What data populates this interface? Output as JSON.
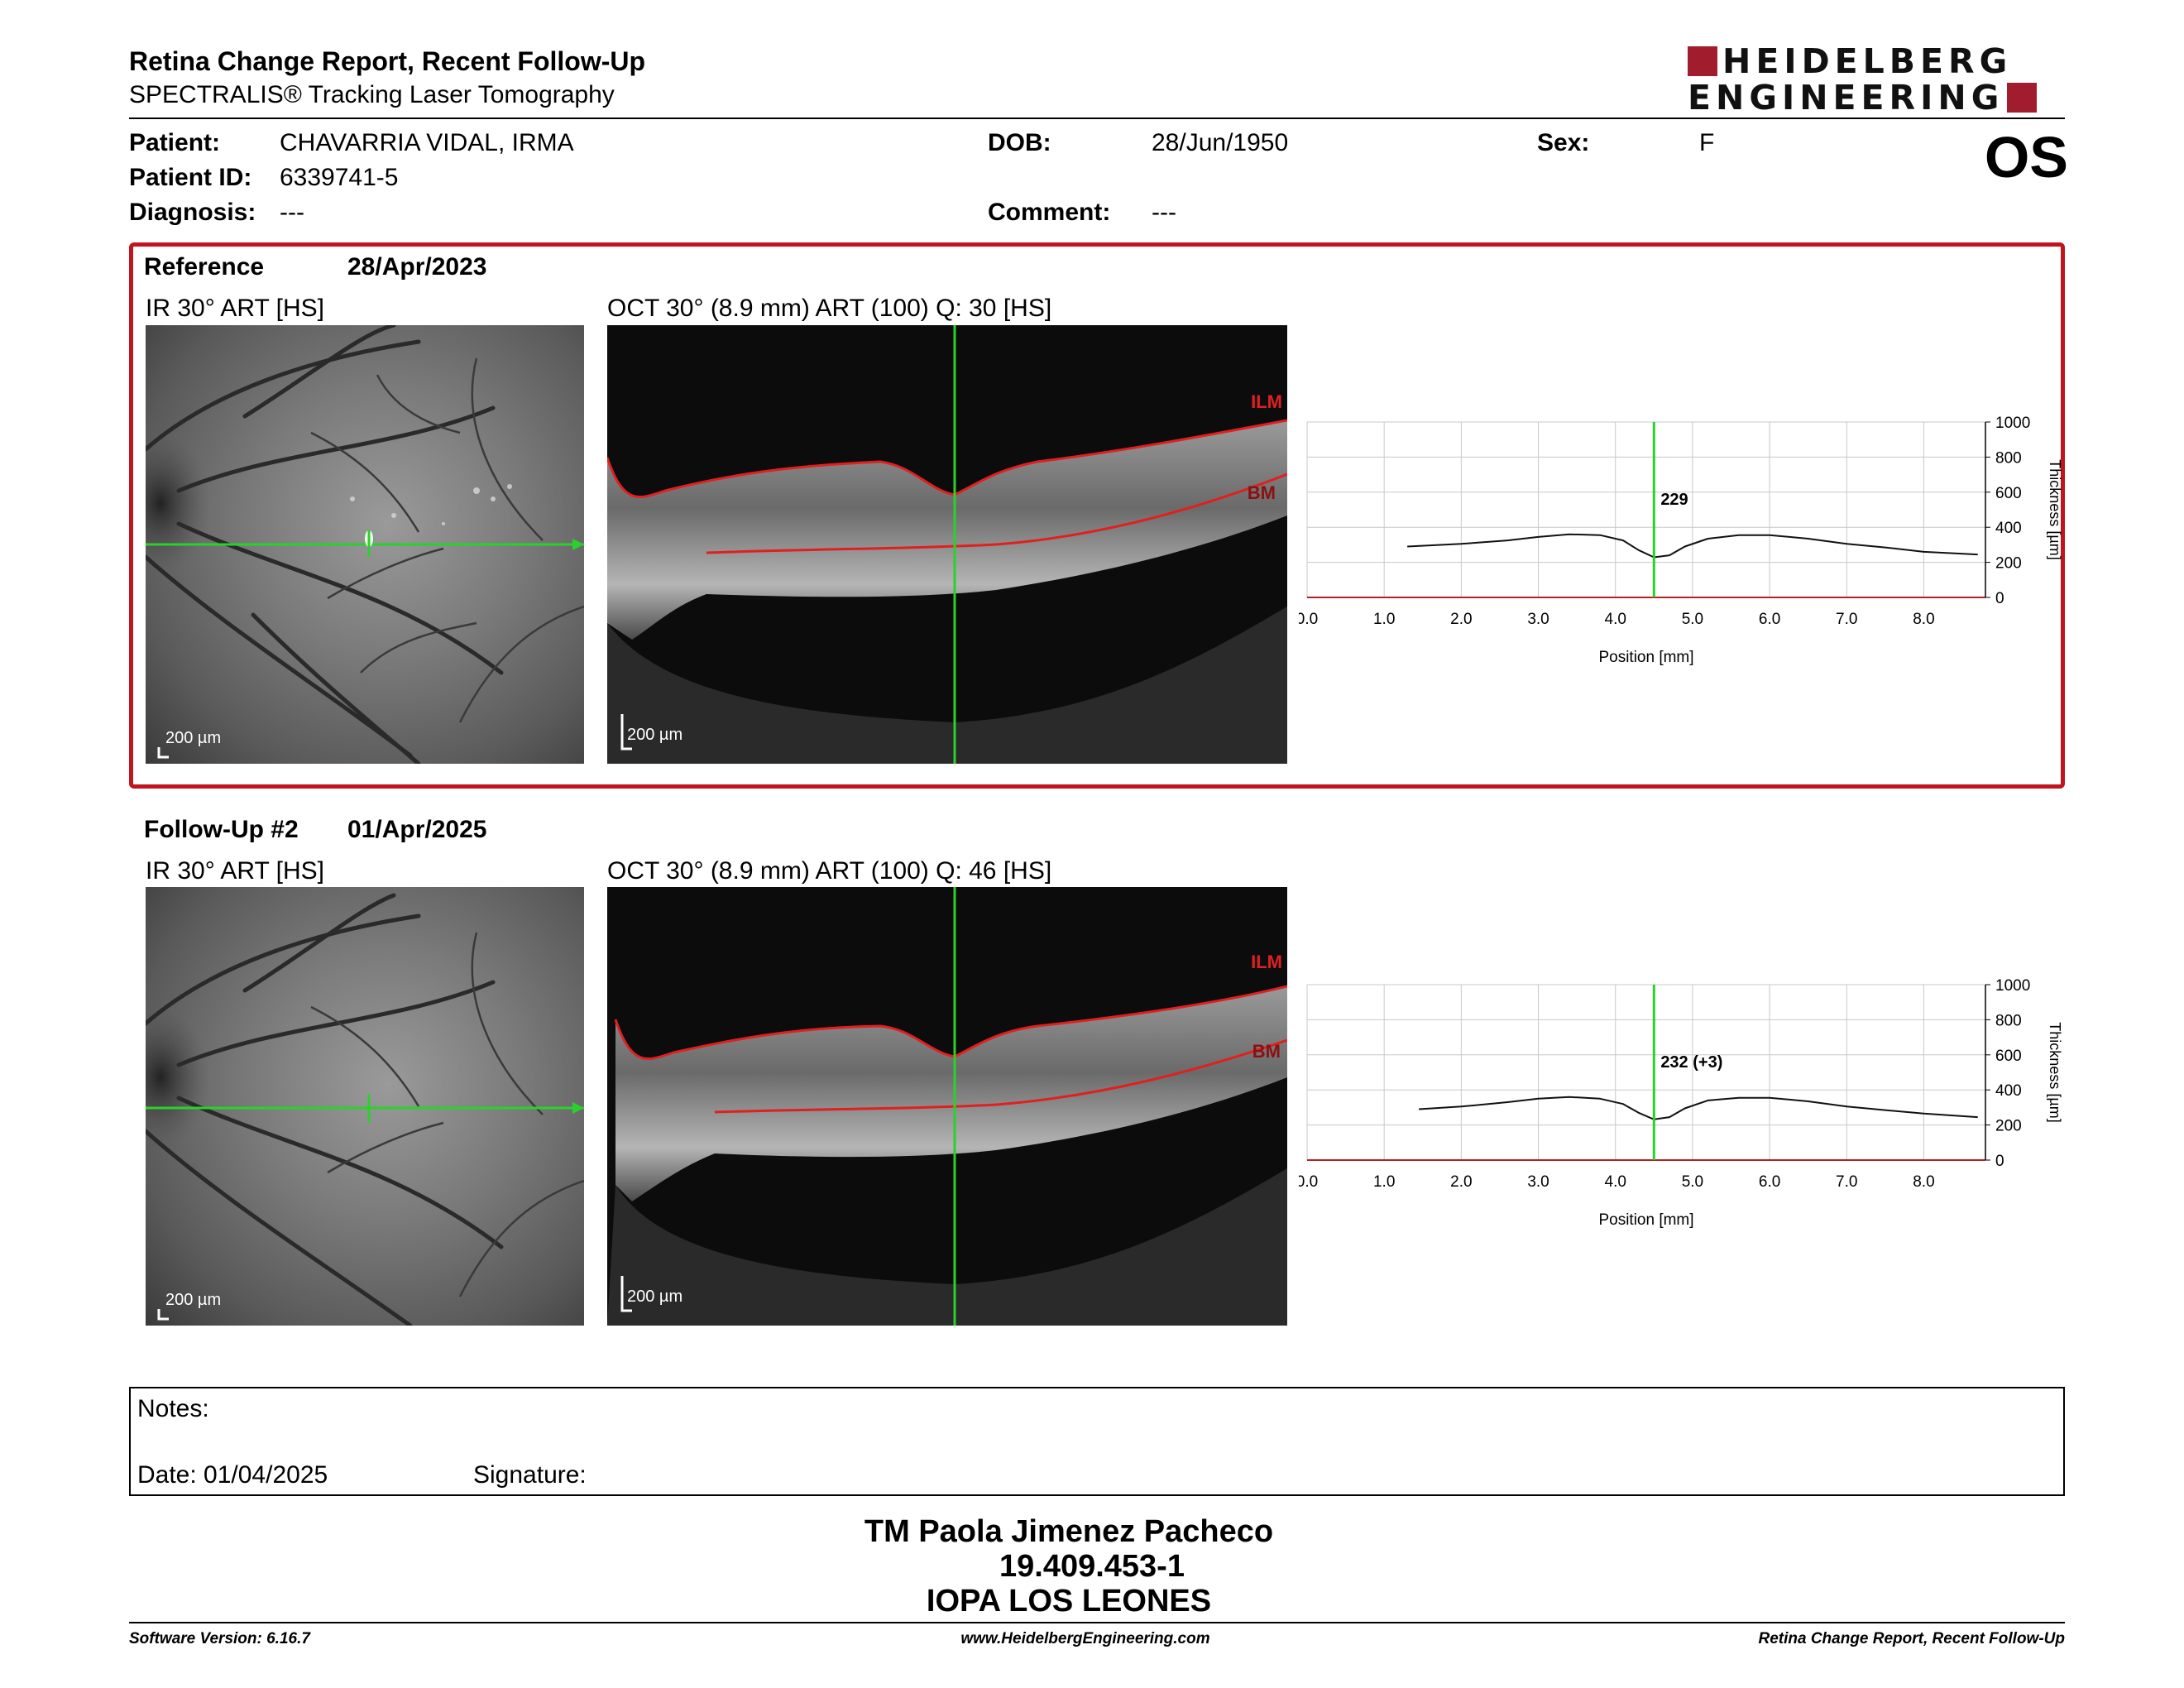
{
  "header": {
    "title": "Retina Change Report, Recent Follow-Up",
    "subtitle": "SPECTRALIS® Tracking Laser Tomography",
    "logo_line1": "HEIDELBERG",
    "logo_line2": "ENGINEERING"
  },
  "patient": {
    "patient_label": "Patient:",
    "patient_value": "CHAVARRIA VIDAL, IRMA",
    "id_label": "Patient ID:",
    "id_value": "6339741-5",
    "diagnosis_label": "Diagnosis:",
    "diagnosis_value": "---",
    "dob_label": "DOB:",
    "dob_value": "28/Jun/1950",
    "comment_label": "Comment:",
    "comment_value": "---",
    "sex_label": "Sex:",
    "sex_value": "F",
    "eye": "OS"
  },
  "reference": {
    "label": "Reference",
    "date": "28/Apr/2023",
    "ir_caption": "IR 30° ART [HS]",
    "oct_caption": "OCT 30° (8.9 mm) ART (100) Q: 30 [HS]",
    "scale_ir": "200 µm",
    "scale_oct": "200 µm",
    "ilm": "ILM",
    "bm": "BM"
  },
  "followup": {
    "label": "Follow-Up #2",
    "date": "01/Apr/2025",
    "ir_caption": "IR 30° ART [HS]",
    "oct_caption": "OCT 30° (8.9 mm) ART (100) Q: 46 [HS]",
    "scale_ir": "200 µm",
    "scale_oct": "200 µm",
    "ilm": "ILM",
    "bm": "BM"
  },
  "chart_data": [
    {
      "type": "line",
      "xlabel": "Position [mm]",
      "ylabel": "Thickness [µm]",
      "xlim": [
        0,
        8.8
      ],
      "ylim": [
        0,
        1000
      ],
      "xticks": [
        "0.0",
        "1.0",
        "2.0",
        "3.0",
        "4.0",
        "5.0",
        "6.0",
        "7.0",
        "8.0"
      ],
      "yticks": [
        "0",
        "200",
        "400",
        "600",
        "800",
        "1000"
      ],
      "marker_x": 4.5,
      "marker_label": "229",
      "x": [
        1.3,
        2.0,
        2.6,
        3.0,
        3.4,
        3.8,
        4.1,
        4.3,
        4.5,
        4.7,
        4.9,
        5.2,
        5.6,
        6.0,
        6.5,
        7.0,
        7.5,
        8.0,
        8.7
      ],
      "y": [
        290,
        305,
        325,
        345,
        360,
        355,
        325,
        270,
        229,
        240,
        290,
        335,
        355,
        355,
        335,
        305,
        285,
        260,
        245
      ]
    },
    {
      "type": "line",
      "xlabel": "Position [mm]",
      "ylabel": "Thickness [µm]",
      "xlim": [
        0,
        8.8
      ],
      "ylim": [
        0,
        1000
      ],
      "xticks": [
        "0.0",
        "1.0",
        "2.0",
        "3.0",
        "4.0",
        "5.0",
        "6.0",
        "7.0",
        "8.0"
      ],
      "yticks": [
        "0",
        "200",
        "400",
        "600",
        "800",
        "1000"
      ],
      "marker_x": 4.5,
      "marker_label": "232 (+3)",
      "x": [
        1.45,
        2.0,
        2.6,
        3.0,
        3.4,
        3.8,
        4.1,
        4.3,
        4.5,
        4.7,
        4.9,
        5.2,
        5.6,
        6.0,
        6.5,
        7.0,
        7.5,
        8.0,
        8.7
      ],
      "y": [
        290,
        305,
        330,
        350,
        360,
        350,
        320,
        270,
        232,
        245,
        295,
        340,
        355,
        355,
        335,
        305,
        285,
        265,
        245
      ]
    }
  ],
  "notes": {
    "label": "Notes:",
    "date": "Date: 01/04/2025",
    "signature": "Signature:"
  },
  "signer": {
    "name": "TM Paola Jimenez Pacheco",
    "rut": "19.409.453-1",
    "org": "IOPA LOS LEONES"
  },
  "footer": {
    "software": "Software Version: 6.16.7",
    "website": "www.HeidelbergEngineering.com",
    "report": "Retina Change Report, Recent Follow-Up"
  }
}
